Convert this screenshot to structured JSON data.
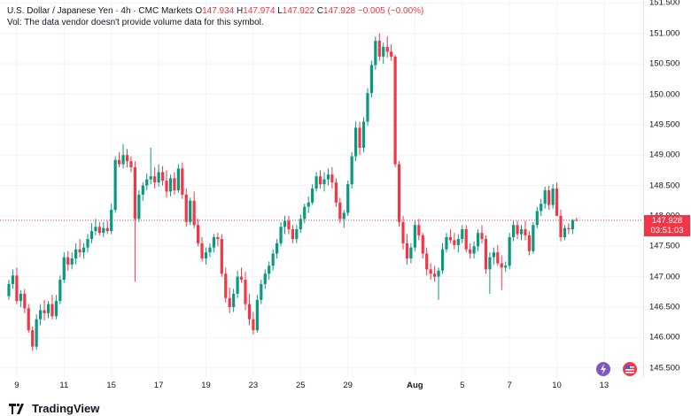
{
  "legend": {
    "symbol": "U.S. Dollar / Japanese Yen · 4h · CMC Markets",
    "o_label": "O",
    "o": "147.934",
    "h_label": "H",
    "h": "147.974",
    "l_label": "L",
    "l": "147.922",
    "c_label": "C",
    "c": "147.928",
    "change": "−0.005 (−0.00%)",
    "vol_note": "Vol: The data vendor doesn't provide volume data for this symbol."
  },
  "brand": "TradingView",
  "current_price": {
    "value": "147.928",
    "countdown": "03:51:03"
  },
  "colors": {
    "up": "#089981",
    "down": "#f23645",
    "grid": "#f0f3fa",
    "dotted": "#f23645"
  },
  "icons": [
    "lightning-icon",
    "flag-icon"
  ],
  "chart_data": {
    "type": "candlestick",
    "title": "",
    "ylim": [
      145.35,
      151.55
    ],
    "y_ticks": [
      145.5,
      146.0,
      146.5,
      147.0,
      147.5,
      148.0,
      148.5,
      149.0,
      149.5,
      150.0,
      150.5,
      151.0,
      151.5
    ],
    "y_tick_labels": [
      "145.500",
      "146.000",
      "146.500",
      "147.000",
      "147.500",
      "148.000",
      "148.500",
      "149.000",
      "149.500",
      "150.000",
      "150.500",
      "151.000",
      "151.500"
    ],
    "x_tick_labels": [
      {
        "label": "9",
        "index": 2
      },
      {
        "label": "11",
        "index": 14
      },
      {
        "label": "15",
        "index": 26
      },
      {
        "label": "17",
        "index": 38
      },
      {
        "label": "19",
        "index": 50
      },
      {
        "label": "23",
        "index": 62
      },
      {
        "label": "25",
        "index": 74
      },
      {
        "label": "29",
        "index": 86
      },
      {
        "label": "Aug",
        "index": 103,
        "bold": true
      },
      {
        "label": "5",
        "index": 115
      },
      {
        "label": "7",
        "index": 127
      },
      {
        "label": "10",
        "index": 139
      },
      {
        "label": "13",
        "index": 151
      }
    ],
    "candles": [
      [
        146.68,
        146.95,
        146.62,
        146.88
      ],
      [
        146.88,
        147.12,
        146.8,
        147.02
      ],
      [
        147.02,
        147.15,
        146.55,
        146.6
      ],
      [
        146.6,
        146.78,
        146.5,
        146.72
      ],
      [
        146.72,
        146.8,
        146.4,
        146.48
      ],
      [
        146.48,
        146.55,
        146.08,
        146.12
      ],
      [
        146.12,
        146.18,
        145.78,
        145.85
      ],
      [
        145.85,
        146.38,
        145.8,
        146.3
      ],
      [
        146.3,
        146.55,
        146.2,
        146.45
      ],
      [
        146.45,
        146.62,
        146.28,
        146.4
      ],
      [
        146.4,
        146.6,
        146.32,
        146.55
      ],
      [
        146.55,
        146.7,
        146.3,
        146.35
      ],
      [
        146.35,
        146.7,
        146.3,
        146.6
      ],
      [
        146.6,
        147.02,
        146.55,
        146.95
      ],
      [
        146.95,
        147.4,
        146.9,
        147.32
      ],
      [
        147.32,
        147.42,
        147.1,
        147.2
      ],
      [
        147.2,
        147.4,
        147.12,
        147.3
      ],
      [
        147.3,
        147.55,
        147.2,
        147.45
      ],
      [
        147.45,
        147.62,
        147.32,
        147.4
      ],
      [
        147.4,
        147.55,
        147.3,
        147.48
      ],
      [
        147.48,
        147.7,
        147.4,
        147.62
      ],
      [
        147.62,
        147.88,
        147.55,
        147.75
      ],
      [
        147.75,
        147.95,
        147.68,
        147.82
      ],
      [
        147.82,
        147.9,
        147.68,
        147.72
      ],
      [
        147.72,
        147.9,
        147.65,
        147.8
      ],
      [
        147.8,
        147.92,
        147.7,
        147.75
      ],
      [
        147.75,
        148.2,
        147.7,
        148.1
      ],
      [
        148.1,
        148.98,
        148.05,
        148.92
      ],
      [
        148.92,
        149.05,
        148.8,
        148.85
      ],
      [
        148.85,
        149.18,
        148.78,
        149.0
      ],
      [
        149.0,
        149.1,
        148.8,
        148.9
      ],
      [
        148.9,
        148.98,
        148.72,
        148.8
      ],
      [
        148.8,
        148.9,
        146.92,
        147.95
      ],
      [
        147.95,
        148.42,
        147.9,
        148.35
      ],
      [
        148.35,
        148.55,
        148.25,
        148.5
      ],
      [
        148.5,
        148.7,
        148.42,
        148.6
      ],
      [
        148.6,
        149.12,
        148.52,
        148.65
      ],
      [
        148.65,
        148.8,
        148.45,
        148.55
      ],
      [
        148.55,
        148.85,
        148.48,
        148.72
      ],
      [
        148.72,
        148.82,
        148.5,
        148.58
      ],
      [
        148.58,
        148.75,
        148.3,
        148.4
      ],
      [
        148.4,
        148.68,
        148.32,
        148.62
      ],
      [
        148.62,
        148.72,
        148.35,
        148.42
      ],
      [
        148.42,
        148.85,
        148.38,
        148.78
      ],
      [
        148.78,
        148.88,
        148.28,
        148.35
      ],
      [
        148.35,
        148.45,
        147.82,
        147.9
      ],
      [
        147.9,
        148.3,
        147.85,
        148.25
      ],
      [
        148.25,
        148.4,
        147.8,
        147.85
      ],
      [
        147.85,
        147.95,
        147.5,
        147.55
      ],
      [
        147.55,
        147.65,
        147.25,
        147.3
      ],
      [
        147.3,
        147.48,
        147.2,
        147.4
      ],
      [
        147.4,
        147.55,
        147.32,
        147.48
      ],
      [
        147.48,
        147.7,
        147.4,
        147.65
      ],
      [
        147.65,
        147.72,
        147.5,
        147.62
      ],
      [
        147.62,
        147.7,
        147.0,
        147.05
      ],
      [
        147.05,
        147.15,
        146.58,
        146.65
      ],
      [
        146.65,
        146.82,
        146.4,
        146.5
      ],
      [
        146.5,
        146.8,
        146.42,
        146.72
      ],
      [
        146.72,
        147.1,
        146.65,
        147.0
      ],
      [
        147.0,
        147.15,
        146.9,
        146.95
      ],
      [
        146.95,
        147.08,
        146.45,
        146.55
      ],
      [
        146.55,
        146.72,
        146.2,
        146.3
      ],
      [
        146.3,
        146.42,
        146.05,
        146.12
      ],
      [
        146.12,
        146.7,
        146.08,
        146.62
      ],
      [
        146.62,
        146.95,
        146.55,
        146.88
      ],
      [
        146.88,
        147.12,
        146.8,
        147.05
      ],
      [
        147.05,
        147.25,
        146.95,
        147.18
      ],
      [
        147.18,
        147.45,
        147.1,
        147.38
      ],
      [
        147.38,
        147.62,
        147.3,
        147.55
      ],
      [
        147.55,
        147.9,
        147.5,
        147.82
      ],
      [
        147.82,
        148.0,
        147.7,
        147.92
      ],
      [
        147.92,
        148.0,
        147.7,
        147.78
      ],
      [
        147.78,
        147.85,
        147.55,
        147.62
      ],
      [
        147.62,
        147.85,
        147.55,
        147.78
      ],
      [
        147.78,
        148.02,
        147.72,
        147.95
      ],
      [
        147.95,
        148.2,
        147.88,
        148.15
      ],
      [
        148.15,
        148.32,
        148.05,
        148.22
      ],
      [
        148.22,
        148.52,
        148.18,
        148.45
      ],
      [
        148.45,
        148.72,
        148.4,
        148.65
      ],
      [
        148.65,
        148.75,
        148.45,
        148.52
      ],
      [
        148.52,
        148.72,
        148.4,
        148.6
      ],
      [
        148.6,
        148.78,
        148.5,
        148.68
      ],
      [
        148.68,
        148.8,
        148.45,
        148.55
      ],
      [
        148.55,
        148.62,
        148.15,
        148.22
      ],
      [
        148.22,
        148.3,
        147.88,
        147.95
      ],
      [
        147.95,
        148.1,
        147.8,
        148.05
      ],
      [
        148.05,
        148.58,
        148.0,
        148.52
      ],
      [
        148.52,
        149.05,
        148.45,
        148.98
      ],
      [
        148.98,
        149.55,
        148.9,
        149.45
      ],
      [
        149.45,
        149.55,
        149.0,
        149.12
      ],
      [
        149.12,
        149.62,
        149.05,
        149.55
      ],
      [
        149.55,
        150.1,
        149.48,
        150.02
      ],
      [
        150.02,
        150.55,
        149.95,
        150.48
      ],
      [
        150.48,
        150.95,
        150.4,
        150.88
      ],
      [
        150.88,
        151.0,
        150.55,
        150.62
      ],
      [
        150.62,
        150.85,
        150.5,
        150.78
      ],
      [
        150.78,
        150.95,
        150.6,
        150.7
      ],
      [
        150.7,
        150.82,
        150.55,
        150.62
      ],
      [
        150.62,
        150.65,
        148.8,
        148.85
      ],
      [
        148.85,
        148.9,
        147.82,
        147.9
      ],
      [
        147.9,
        148.0,
        147.45,
        147.55
      ],
      [
        147.55,
        147.7,
        147.2,
        147.3
      ],
      [
        147.3,
        147.55,
        147.22,
        147.48
      ],
      [
        147.48,
        147.92,
        147.42,
        147.85
      ],
      [
        147.85,
        147.95,
        147.6,
        147.68
      ],
      [
        147.68,
        147.72,
        147.3,
        147.38
      ],
      [
        147.38,
        147.48,
        147.02,
        147.12
      ],
      [
        147.12,
        147.22,
        146.95,
        147.05
      ],
      [
        147.05,
        147.18,
        146.92,
        147.0
      ],
      [
        147.0,
        147.15,
        146.62,
        147.1
      ],
      [
        147.1,
        147.55,
        147.05,
        147.45
      ],
      [
        147.45,
        147.72,
        147.4,
        147.65
      ],
      [
        147.65,
        147.78,
        147.55,
        147.6
      ],
      [
        147.6,
        147.72,
        147.45,
        147.52
      ],
      [
        147.52,
        147.7,
        147.4,
        147.62
      ],
      [
        147.62,
        147.85,
        147.55,
        147.78
      ],
      [
        147.78,
        147.85,
        147.4,
        147.45
      ],
      [
        147.45,
        147.55,
        147.3,
        147.38
      ],
      [
        147.38,
        147.58,
        147.3,
        147.5
      ],
      [
        147.5,
        147.78,
        147.42,
        147.72
      ],
      [
        147.72,
        147.85,
        147.55,
        147.62
      ],
      [
        147.62,
        147.68,
        147.05,
        147.12
      ],
      [
        147.12,
        147.4,
        146.72,
        147.32
      ],
      [
        147.32,
        147.48,
        147.2,
        147.4
      ],
      [
        147.4,
        147.52,
        147.18,
        147.22
      ],
      [
        147.22,
        147.35,
        146.78,
        147.15
      ],
      [
        147.15,
        147.25,
        147.08,
        147.18
      ],
      [
        147.18,
        147.72,
        147.12,
        147.65
      ],
      [
        147.65,
        147.92,
        147.58,
        147.85
      ],
      [
        147.85,
        147.92,
        147.62,
        147.7
      ],
      [
        147.7,
        147.85,
        147.6,
        147.78
      ],
      [
        147.78,
        147.92,
        147.6,
        147.68
      ],
      [
        147.68,
        147.75,
        147.35,
        147.42
      ],
      [
        147.42,
        147.9,
        147.38,
        147.85
      ],
      [
        147.85,
        148.15,
        147.8,
        148.08
      ],
      [
        148.08,
        148.28,
        148.0,
        148.2
      ],
      [
        148.2,
        148.48,
        148.12,
        148.42
      ],
      [
        148.42,
        148.5,
        148.1,
        148.18
      ],
      [
        148.18,
        148.52,
        148.12,
        148.45
      ],
      [
        148.45,
        148.55,
        148.05,
        148.0
      ],
      [
        148.0,
        148.1,
        147.58,
        147.65
      ],
      [
        147.65,
        147.85,
        147.6,
        147.8
      ],
      [
        147.8,
        147.88,
        147.7,
        147.78
      ],
      [
        147.78,
        147.95,
        147.7,
        147.93
      ],
      [
        147.93,
        147.97,
        147.92,
        147.928
      ]
    ]
  }
}
